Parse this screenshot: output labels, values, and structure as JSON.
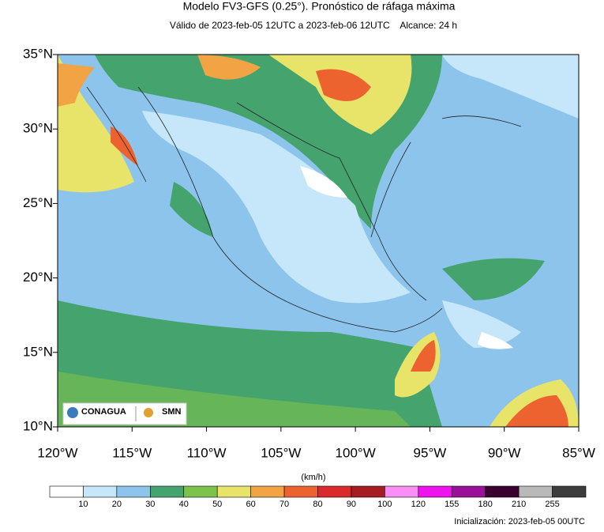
{
  "header": {
    "title": "Modelo FV3-GFS (0.25°). Pronóstico de ráfaga máxima",
    "subtitle": "Válido de 2023-feb-05 12UTC a 2023-feb-06 12UTC    Alcance: 24 h"
  },
  "map": {
    "xlim": [
      -120,
      -85
    ],
    "ylim": [
      10,
      35
    ],
    "lon_ticks": [
      {
        "value": -120,
        "label": "120°W"
      },
      {
        "value": -115,
        "label": "115°W"
      },
      {
        "value": -110,
        "label": "110°W"
      },
      {
        "value": -105,
        "label": "105°W"
      },
      {
        "value": -100,
        "label": "100°W"
      },
      {
        "value": -95,
        "label": "95°W"
      },
      {
        "value": -90,
        "label": "90°W"
      },
      {
        "value": -85,
        "label": "85°W"
      }
    ],
    "lat_ticks": [
      {
        "value": 10,
        "label": "10°N"
      },
      {
        "value": 15,
        "label": "15°N"
      },
      {
        "value": 20,
        "label": "20°N"
      },
      {
        "value": 25,
        "label": "25°N"
      },
      {
        "value": 30,
        "label": "30°N"
      },
      {
        "value": 35,
        "label": "35°N"
      }
    ]
  },
  "logos": {
    "left": "CONAGUA",
    "right": "SMN"
  },
  "colorbar": {
    "units": "(km/h)",
    "levels": [
      10,
      20,
      30,
      40,
      50,
      60,
      70,
      80,
      90,
      100,
      120,
      155,
      180,
      210,
      255
    ],
    "colors": [
      "#ffffff",
      "#c6e6f9",
      "#8dc4ec",
      "#45a46e",
      "#7dc24a",
      "#e8e46a",
      "#f2a444",
      "#ec6330",
      "#d92b2b",
      "#a51c22",
      "#f98ef5",
      "#ee12ee",
      "#9a1199",
      "#3a0030",
      "#b9b9b9",
      "#3d3d3d"
    ]
  },
  "footer": {
    "init": "Inicialización: 2023-feb-05 00UTC"
  }
}
